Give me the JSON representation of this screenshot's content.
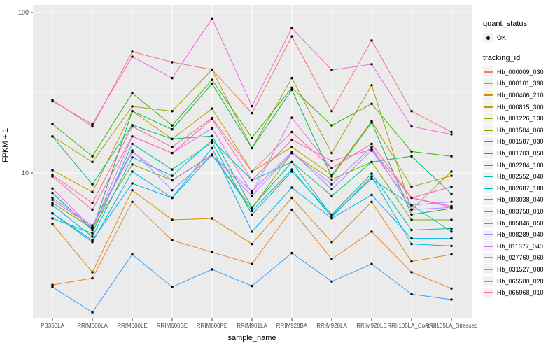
{
  "figure": {
    "y_axis_title": "FPKM + 1",
    "x_axis_title": "sample_name"
  },
  "legend": {
    "quant_title": "quant_status",
    "quant_item_label": "OK",
    "tracking_title": "tracking_id"
  },
  "style": {
    "panel_bg": "#EBEBEB",
    "grid_color": "#FFFFFF",
    "tick_color": "#333333",
    "tick_label_color": "#4D4D4D",
    "point_color": "#000000",
    "legend_key_bg": "#F2F2F2"
  },
  "chart_data": {
    "type": "line",
    "title": "",
    "xlabel": "sample_name",
    "ylabel": "FPKM + 1",
    "log_y": true,
    "ylim": [
      1.2,
      110
    ],
    "y_major_ticks": [
      10,
      100
    ],
    "y_minor_ticks": [
      3.162,
      31.623
    ],
    "grid": true,
    "legend_position": "right",
    "point_marker": "black-dot",
    "categories": [
      "PB350LA",
      "RRIM600LA",
      "RRIM600LE",
      "RRIM600SE",
      "RRIM600PE",
      "RRIM901LA",
      "RRIM928BA",
      "RRIM928LA",
      "RRIM928LE",
      "RRII105LA_Control",
      "RRII105LA_Stressed"
    ],
    "series": [
      {
        "name": "Hb_000009_030",
        "color": "#F8766D",
        "values": [
          28.5,
          19.5,
          57,
          49,
          44,
          23.6,
          71,
          24.3,
          67,
          24.3,
          18
        ]
      },
      {
        "name": "Hb_000101_390",
        "color": "#EA8331",
        "values": [
          2.0,
          2.2,
          6.6,
          3.8,
          3.2,
          2.7,
          5.9,
          2.9,
          4.3,
          2.4,
          1.9
        ]
      },
      {
        "name": "Hb_000406_210",
        "color": "#D89000",
        "values": [
          4.8,
          2.4,
          7.8,
          5.1,
          5.2,
          3.6,
          7.0,
          3.7,
          6.6,
          2.8,
          3.1
        ]
      },
      {
        "name": "Hb_000815_300",
        "color": "#C09B00",
        "values": [
          10.4,
          7.6,
          24.3,
          16.3,
          25.2,
          10.2,
          14.5,
          9.7,
          21.0,
          8.2,
          9.6
        ]
      },
      {
        "name": "Hb_001226_130",
        "color": "#A3A500",
        "values": [
          16.9,
          11.7,
          26.0,
          24.3,
          44.0,
          14.3,
          39.0,
          13.3,
          35.2,
          5.9,
          10.2
        ]
      },
      {
        "name": "Hb_001504_060",
        "color": "#7CAE00",
        "values": [
          6.5,
          4.5,
          11.3,
          9.0,
          13.0,
          6.0,
          13.3,
          9.1,
          11.7,
          5.1,
          5.1
        ]
      },
      {
        "name": "Hb_001587_030",
        "color": "#39B600",
        "values": [
          20.2,
          12.7,
          31.4,
          19.8,
          38.0,
          16.6,
          34.0,
          19.8,
          27.0,
          13.6,
          12.7
        ]
      },
      {
        "name": "Hb_001703_050",
        "color": "#00BB4E",
        "values": [
          7.5,
          4.4,
          24.3,
          18.7,
          36.0,
          14.3,
          33.0,
          9.5,
          20.6,
          5.5,
          6.0
        ]
      },
      {
        "name": "Hb_002284_100",
        "color": "#00BF7D",
        "values": [
          16.9,
          8.5,
          19.9,
          16.3,
          17.0,
          6.1,
          11.7,
          7.2,
          11.7,
          12.7,
          7.4
        ]
      },
      {
        "name": "Hb_002552_040",
        "color": "#00C1A3",
        "values": [
          5.2,
          4.2,
          15.2,
          10.5,
          15.5,
          5.5,
          10.2,
          5.5,
          9.9,
          4.4,
          4.5
        ]
      },
      {
        "name": "Hb_002687_180",
        "color": "#00BFC4",
        "values": [
          6.3,
          4.0,
          12.5,
          9.6,
          16.0,
          9.0,
          11.7,
          5.4,
          9.2,
          6.3,
          4.3
        ]
      },
      {
        "name": "Hb_003038_040",
        "color": "#00BAE0",
        "values": [
          5.6,
          3.7,
          10.2,
          7.0,
          13.0,
          5.8,
          10.5,
          5.3,
          9.5,
          3.6,
          3.5
        ]
      },
      {
        "name": "Hb_003758_010",
        "color": "#00B0F6",
        "values": [
          5.6,
          3.8,
          8.6,
          7.0,
          14.3,
          4.3,
          8.1,
          5.2,
          7.3,
          3.9,
          3.9
        ]
      },
      {
        "name": "Hb_005846_050",
        "color": "#35A2FF",
        "values": [
          1.94,
          1.35,
          3.1,
          1.94,
          2.5,
          1.97,
          3.16,
          2.1,
          2.7,
          1.75,
          1.62
        ]
      },
      {
        "name": "Hb_008289_040",
        "color": "#9590FF",
        "values": [
          7.0,
          4.7,
          13.8,
          7.8,
          12.9,
          7.7,
          13.5,
          7.9,
          13.8,
          6.3,
          6.6
        ]
      },
      {
        "name": "Hb_011377_040",
        "color": "#C77CFF",
        "values": [
          6.8,
          4.6,
          13.5,
          9.0,
          12.9,
          7.2,
          13.3,
          8.5,
          14.5,
          5.9,
          6.1
        ]
      },
      {
        "name": "Hb_027760_060",
        "color": "#E76BF3",
        "values": [
          8.0,
          4.5,
          16.9,
          13.3,
          19.0,
          7.5,
          22.1,
          10.7,
          15.2,
          7.0,
          6.1
        ]
      },
      {
        "name": "Hb_031527_080",
        "color": "#FA62DB",
        "values": [
          28.0,
          20.2,
          53.0,
          39.0,
          92.0,
          26.1,
          80.0,
          43.8,
          47.6,
          19.5,
          17.4
        ]
      },
      {
        "name": "Hb_065500_020",
        "color": "#FF62BC",
        "values": [
          9.5,
          5.9,
          16.9,
          13.3,
          21.7,
          9.0,
          16.1,
          11.9,
          14.0,
          7.0,
          6.2
        ]
      },
      {
        "name": "Hb_065968_010",
        "color": "#FF6A98",
        "values": [
          9.7,
          6.5,
          19.5,
          14.5,
          22.0,
          10.2,
          18.0,
          10.7,
          15.2,
          7.0,
          8.2
        ]
      }
    ]
  }
}
